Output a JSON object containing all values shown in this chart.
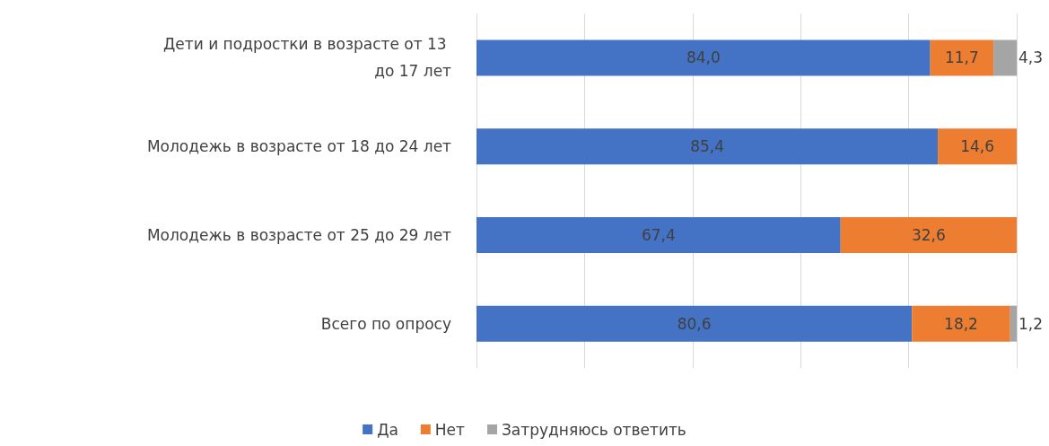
{
  "chart_data": {
    "type": "bar",
    "orientation": "horizontal",
    "stacked": true,
    "categories": [
      "Дети и подростки в возрасте от 13 до 17 лет",
      "Молодежь в возрасте от 18 до 24 лет",
      "Молодежь в возрасте от 25 до 29 лет",
      "Всего по опросу"
    ],
    "series": [
      {
        "name": "Да",
        "color": "#4472c4",
        "values": [
          84.0,
          85.4,
          67.4,
          80.6
        ],
        "value_labels": [
          "84,0",
          "85,4",
          "67,4",
          "80,6"
        ]
      },
      {
        "name": "Нет",
        "color": "#ed7d31",
        "values": [
          11.7,
          14.6,
          32.6,
          18.2
        ],
        "value_labels": [
          "11,7",
          "14,6",
          "32,6",
          "18,2"
        ]
      },
      {
        "name": "Затрудняюсь ответить",
        "color": "#a5a5a5",
        "values": [
          4.3,
          null,
          null,
          1.2
        ],
        "value_labels": [
          "4,3",
          null,
          null,
          "1,2"
        ]
      }
    ],
    "xlim": [
      0,
      100
    ],
    "xticks": [
      {
        "value": 0,
        "label": null
      },
      {
        "value": 20,
        "label": null
      },
      {
        "value": 40,
        "label": null
      },
      {
        "value": 60,
        "label": null
      },
      {
        "value": 80,
        "label": null
      },
      {
        "value": 100,
        "label": null
      }
    ],
    "tick_labels": "y",
    "grid": "x",
    "legend": "bottom"
  }
}
